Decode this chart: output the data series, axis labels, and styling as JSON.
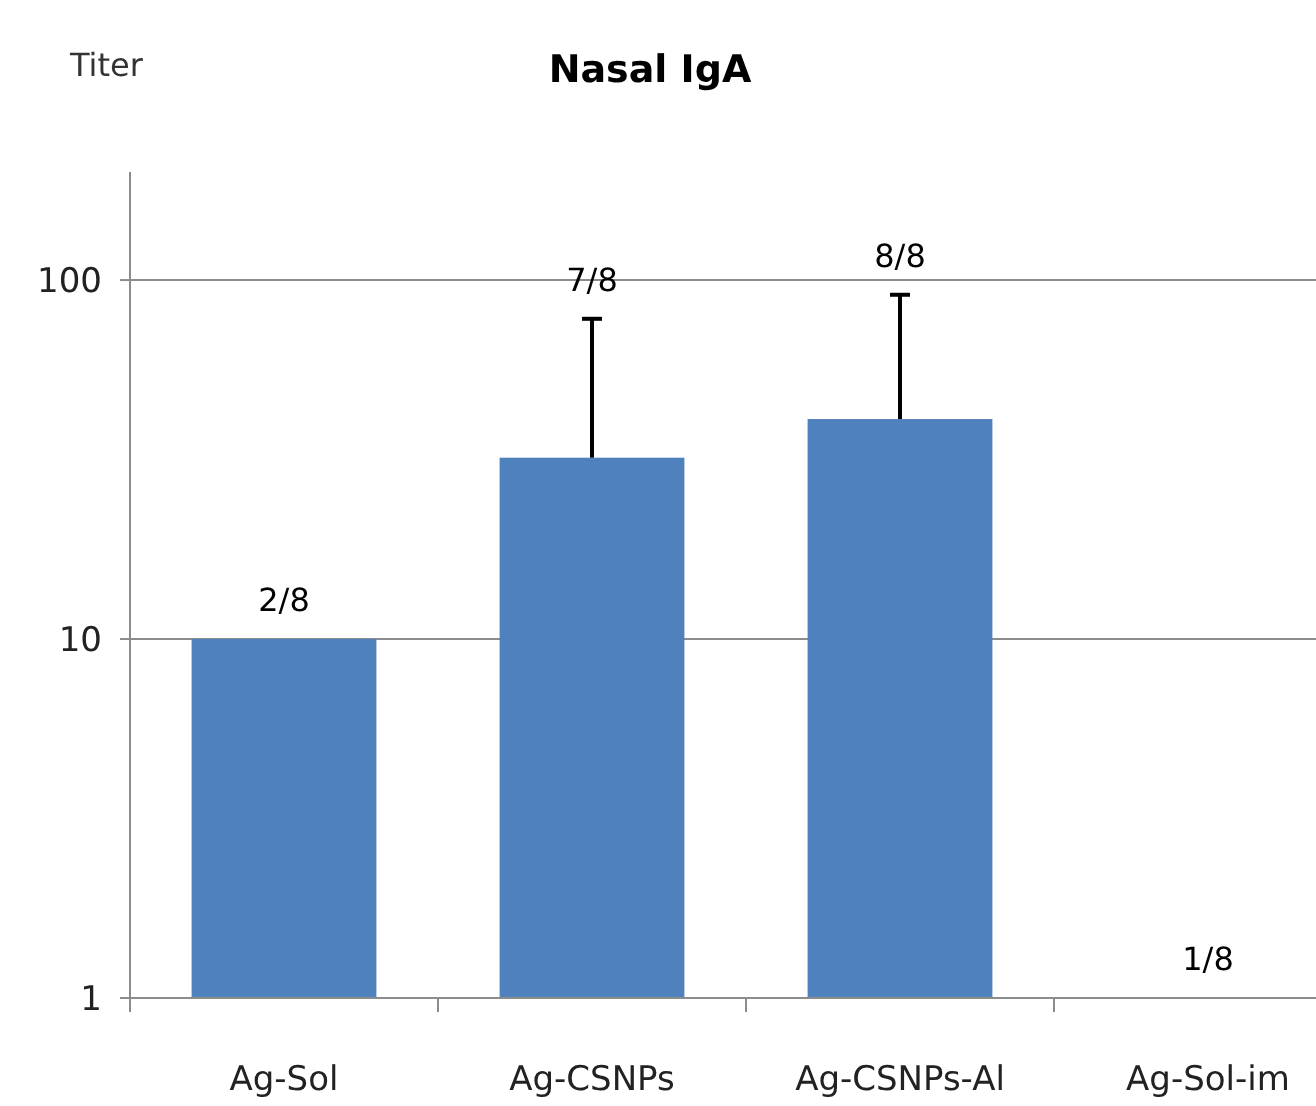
{
  "chart_data": {
    "type": "bar",
    "title": "Nasal IgA",
    "ylabel": "Titer",
    "categories": [
      "Ag-Sol",
      "Ag-CSNPs",
      "Ag-CSNPs-Al",
      "Ag-Sol-im"
    ],
    "values": [
      10,
      32,
      41,
      1
    ],
    "color": "#4f81bd",
    "errors": [
      null,
      [
        32,
        78
      ],
      [
        41,
        91
      ],
      null
    ],
    "log": true,
    "ylim": [
      1,
      200
    ],
    "yticks": [
      1,
      10,
      100
    ],
    "grid": "y",
    "annotations": [
      {
        "text": "2/8",
        "x": "Ag-Sol",
        "y": 10
      },
      {
        "text": "7/8",
        "x": "Ag-CSNPs",
        "y": 78
      },
      {
        "text": "8/8",
        "x": "Ag-CSNPs-Al",
        "y": 91
      },
      {
        "text": "1/8",
        "x": "Ag-Sol-im",
        "y": 1
      }
    ]
  }
}
